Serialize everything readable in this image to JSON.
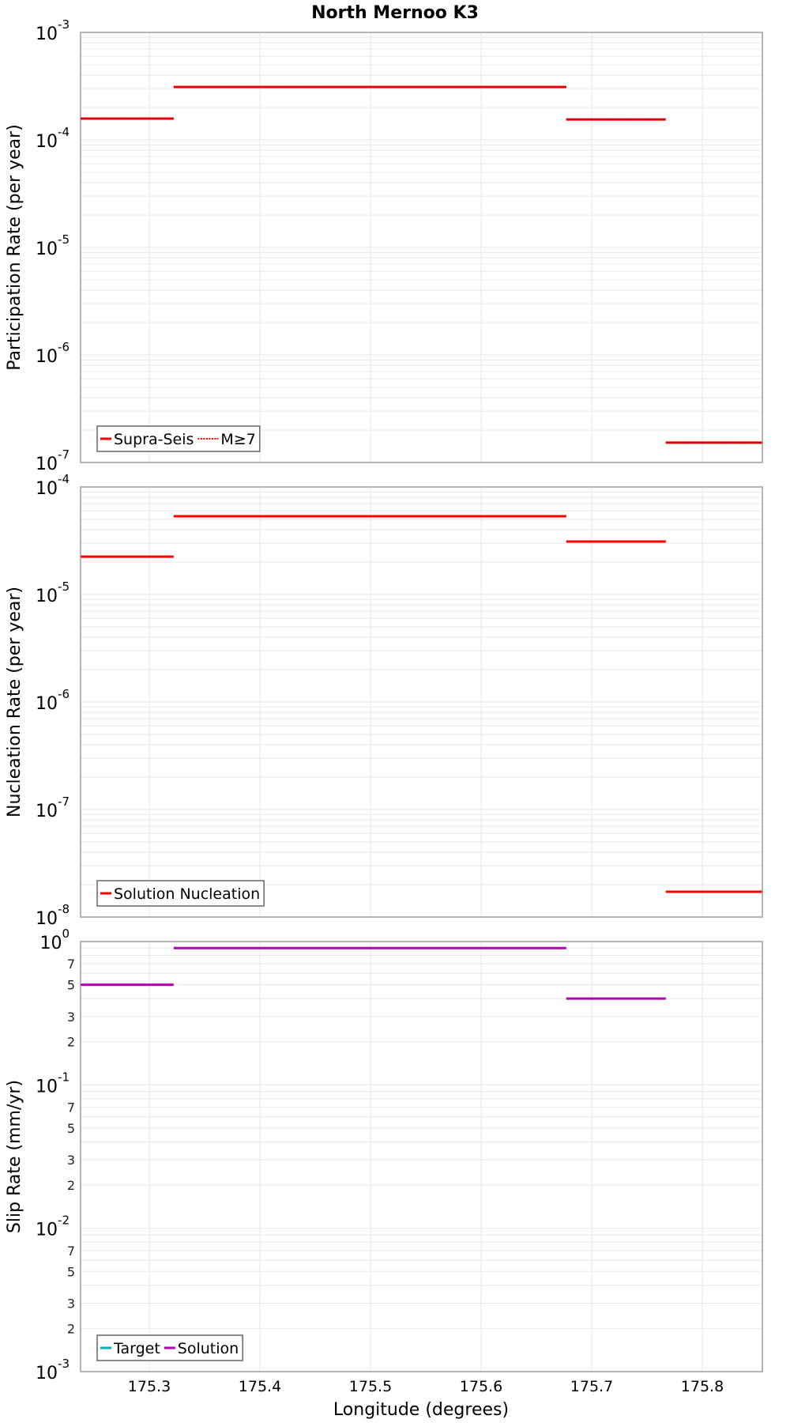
{
  "chart_data": [
    {
      "type": "line",
      "title": "North Mernoo K3",
      "xlabel": "Longitude (degrees)",
      "ylabel": "Participation Rate (per year)",
      "yscale": "log",
      "ylim": [
        1e-07,
        0.001
      ],
      "xlim": [
        175.238,
        175.854
      ],
      "grid": true,
      "legend_position": "lower left",
      "legend": [
        "Supra-Seis",
        "M≥7"
      ],
      "series": [
        {
          "name": "Supra-Seis",
          "color": "#ff0000",
          "style": "solid",
          "segments": [
            {
              "x": [
                175.238,
                175.322
              ],
              "y": 0.000158
            },
            {
              "x": [
                175.322,
                175.677
              ],
              "y": 0.000311
            },
            {
              "x": [
                175.677,
                175.767
              ],
              "y": 0.000155
            },
            {
              "x": [
                175.767,
                175.854
              ],
              "y": 1.53e-07
            }
          ]
        },
        {
          "name": "M≥7",
          "color": "#ff0000",
          "style": "dotted",
          "segments": [
            {
              "x": [
                175.238,
                175.322
              ],
              "y": 0.000158
            },
            {
              "x": [
                175.322,
                175.677
              ],
              "y": 0.000311
            },
            {
              "x": [
                175.677,
                175.767
              ],
              "y": 0.000155
            },
            {
              "x": [
                175.767,
                175.854
              ],
              "y": 1.53e-07
            }
          ]
        }
      ]
    },
    {
      "type": "line",
      "xlabel": "Longitude (degrees)",
      "ylabel": "Nucleation Rate (per year)",
      "yscale": "log",
      "ylim": [
        1e-08,
        0.0001
      ],
      "xlim": [
        175.238,
        175.854
      ],
      "grid": true,
      "legend_position": "lower left",
      "legend": [
        "Solution Nucleation"
      ],
      "series": [
        {
          "name": "Solution Nucleation",
          "color": "#ff0000",
          "style": "solid",
          "segments": [
            {
              "x": [
                175.238,
                175.322
              ],
              "y": 2.25e-05
            },
            {
              "x": [
                175.322,
                175.677
              ],
              "y": 5.34e-05
            },
            {
              "x": [
                175.677,
                175.767
              ],
              "y": 3.11e-05
            },
            {
              "x": [
                175.767,
                175.854
              ],
              "y": 1.72e-08
            }
          ]
        }
      ]
    },
    {
      "type": "line",
      "xlabel": "Longitude (degrees)",
      "ylabel": "Slip Rate (mm/yr)",
      "yscale": "log",
      "ylim": [
        0.001,
        1
      ],
      "xlim": [
        175.238,
        175.854
      ],
      "grid": true,
      "legend_position": "lower left",
      "legend": [
        "Target",
        "Solution"
      ],
      "series": [
        {
          "name": "Target",
          "color": "#00b4b4",
          "style": "solid",
          "segments": []
        },
        {
          "name": "Solution",
          "color": "#b400b4",
          "style": "solid",
          "segments": [
            {
              "x": [
                175.238,
                175.322
              ],
              "y": 0.5
            },
            {
              "x": [
                175.322,
                175.677
              ],
              "y": 0.9
            },
            {
              "x": [
                175.677,
                175.767
              ],
              "y": 0.4
            }
          ]
        }
      ]
    }
  ],
  "figure": {
    "title": "North Mernoo K3",
    "xlabel": "Longitude (degrees)",
    "xticks": [
      "175.3",
      "175.4",
      "175.5",
      "175.6",
      "175.7",
      "175.8"
    ],
    "panels": [
      {
        "ylabel": "Participation Rate (per year)",
        "yticks": [
          {
            "base": "10",
            "exp": "-3"
          },
          {
            "base": "10",
            "exp": "-4"
          },
          {
            "base": "10",
            "exp": "-5"
          },
          {
            "base": "10",
            "exp": "-6"
          },
          {
            "base": "10",
            "exp": "-7"
          }
        ],
        "legend": [
          {
            "label": "Supra-Seis",
            "color": "#ff0000",
            "style": "solid"
          },
          {
            "label": "M≥7",
            "color": "#ff0000",
            "style": "dotted"
          }
        ]
      },
      {
        "ylabel": "Nucleation Rate (per year)",
        "yticks": [
          {
            "base": "10",
            "exp": "-4"
          },
          {
            "base": "10",
            "exp": "-5"
          },
          {
            "base": "10",
            "exp": "-6"
          },
          {
            "base": "10",
            "exp": "-7"
          },
          {
            "base": "10",
            "exp": "-8"
          }
        ],
        "legend": [
          {
            "label": "Solution Nucleation",
            "color": "#ff0000",
            "style": "solid"
          }
        ]
      },
      {
        "ylabel": "Slip Rate (mm/yr)",
        "yticks": [
          {
            "base": "10",
            "exp": "0"
          },
          {
            "base": "10",
            "exp": "-1"
          },
          {
            "base": "10",
            "exp": "-2"
          },
          {
            "base": "10",
            "exp": "-3"
          }
        ],
        "minor_labels": [
          "7",
          "5",
          "3",
          "2"
        ],
        "legend": [
          {
            "label": "Target",
            "color": "#00b4b4",
            "style": "solid"
          },
          {
            "label": "Solution",
            "color": "#b400b4",
            "style": "solid"
          }
        ]
      }
    ]
  }
}
